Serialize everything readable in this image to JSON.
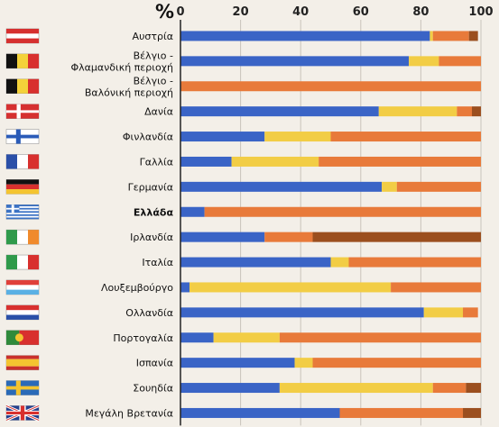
{
  "chart_data": {
    "type": "bar",
    "stacked": true,
    "orientation": "horizontal",
    "unit_label": "%",
    "xlim": [
      0,
      100
    ],
    "ticks": [
      0,
      20,
      40,
      60,
      80,
      100
    ],
    "grid": true,
    "colors": [
      "#3a64c6",
      "#f2cd45",
      "#e87a3a",
      "#9b4f1f"
    ],
    "categories": [
      {
        "label": [
          "Αυστρία"
        ],
        "bold": false,
        "flag": "austria-flag",
        "values": [
          83,
          1,
          12,
          3
        ]
      },
      {
        "label": [
          "Βέλγιο -",
          "Φλαμανδική περιοχή"
        ],
        "bold": false,
        "flag": "belgium-flag",
        "values": [
          76,
          10,
          14,
          0
        ]
      },
      {
        "label": [
          "Βέλγιο -",
          "Βαλόνική περιοχή"
        ],
        "bold": false,
        "flag": "belgium-flag",
        "values": [
          0,
          0,
          100,
          0
        ]
      },
      {
        "label": [
          "Δανία"
        ],
        "bold": false,
        "flag": "denmark-flag",
        "values": [
          66,
          26,
          5,
          3
        ]
      },
      {
        "label": [
          "Φινλανδία"
        ],
        "bold": false,
        "flag": "finland-flag",
        "values": [
          28,
          22,
          50,
          0
        ]
      },
      {
        "label": [
          "Γαλλία"
        ],
        "bold": false,
        "flag": "france-flag",
        "values": [
          17,
          29,
          54,
          0
        ]
      },
      {
        "label": [
          "Γερμανία"
        ],
        "bold": false,
        "flag": "germany-flag",
        "values": [
          67,
          5,
          28,
          0
        ]
      },
      {
        "label": [
          "Ελλάδα"
        ],
        "bold": true,
        "flag": "greece-flag",
        "values": [
          8,
          0,
          92,
          0
        ]
      },
      {
        "label": [
          "Ιρλανδία"
        ],
        "bold": false,
        "flag": "ireland-flag",
        "values": [
          28,
          0,
          16,
          56
        ]
      },
      {
        "label": [
          "Ιταλία"
        ],
        "bold": false,
        "flag": "italy-flag",
        "values": [
          50,
          6,
          44,
          0
        ]
      },
      {
        "label": [
          "Λουξεμβούργο"
        ],
        "bold": false,
        "flag": "luxembourg-flag",
        "values": [
          3,
          67,
          30,
          0
        ]
      },
      {
        "label": [
          "Ολλανδία"
        ],
        "bold": false,
        "flag": "netherlands-flag",
        "values": [
          81,
          13,
          5,
          0
        ]
      },
      {
        "label": [
          "Πορτογαλία"
        ],
        "bold": false,
        "flag": "portugal-flag",
        "values": [
          11,
          22,
          67,
          0
        ]
      },
      {
        "label": [
          "Ισπανία"
        ],
        "bold": false,
        "flag": "spain-flag",
        "values": [
          38,
          6,
          56,
          0
        ]
      },
      {
        "label": [
          "Σουηδία"
        ],
        "bold": false,
        "flag": "sweden-flag",
        "values": [
          33,
          51,
          11,
          5
        ]
      },
      {
        "label": [
          "Μεγάλη Βρετανία"
        ],
        "bold": false,
        "flag": "uk-flag",
        "values": [
          53,
          0,
          41,
          6
        ]
      }
    ]
  }
}
